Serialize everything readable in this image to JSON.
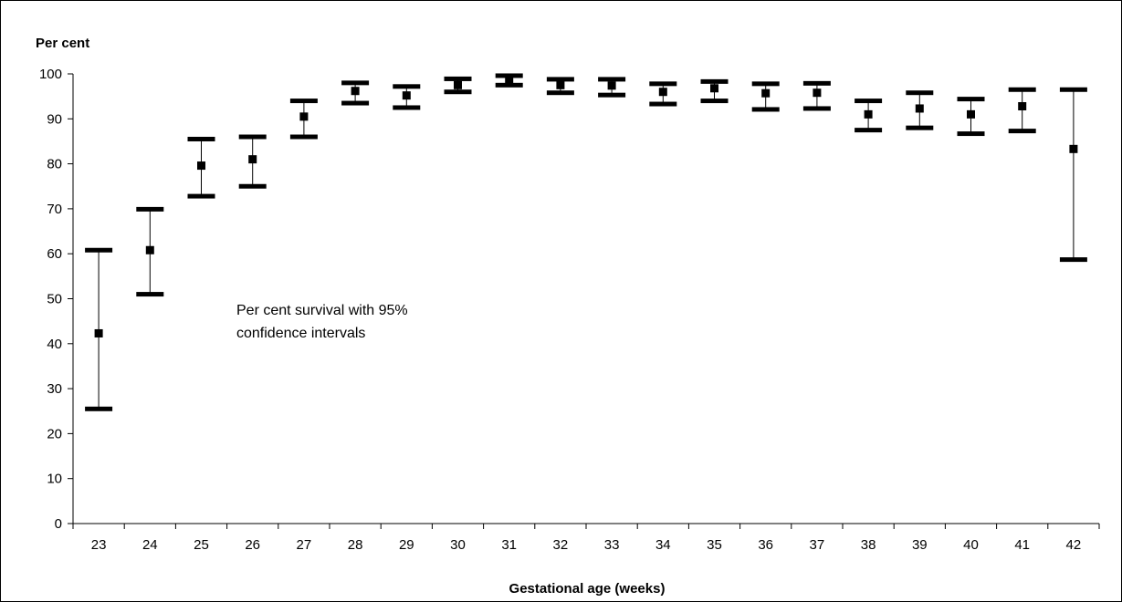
{
  "chart_data": {
    "type": "scatter",
    "title": "",
    "ylabel": "Per cent",
    "xlabel": "Gestational age (weeks)",
    "ylim": [
      0,
      100
    ],
    "yticks": [
      0,
      10,
      20,
      30,
      40,
      50,
      60,
      70,
      80,
      90,
      100
    ],
    "grid": false,
    "legend": "none",
    "annotation": [
      "Per cent survival with 95%",
      "confidence intervals"
    ],
    "categories": [
      "23",
      "24",
      "25",
      "26",
      "27",
      "28",
      "29",
      "30",
      "31",
      "32",
      "33",
      "34",
      "35",
      "36",
      "37",
      "38",
      "39",
      "40",
      "41",
      "42"
    ],
    "series": [
      {
        "values": [
          42.3,
          60.8,
          79.6,
          81.0,
          90.5,
          96.2,
          95.2,
          97.5,
          98.6,
          97.5,
          97.4,
          96.0,
          96.8,
          95.7,
          95.8,
          91.0,
          92.3,
          91.0,
          92.8,
          83.3
        ],
        "lower": [
          25.5,
          51.0,
          72.8,
          75.0,
          86.0,
          93.5,
          92.5,
          96.0,
          97.5,
          95.8,
          95.3,
          93.3,
          94.0,
          92.1,
          92.3,
          87.5,
          88.0,
          86.7,
          87.3,
          58.7
        ],
        "upper": [
          60.8,
          69.9,
          85.5,
          86.0,
          94.0,
          98.0,
          97.2,
          98.9,
          99.6,
          98.8,
          98.8,
          97.8,
          98.3,
          97.8,
          97.9,
          94.0,
          95.8,
          94.4,
          96.5,
          96.5
        ]
      }
    ]
  }
}
